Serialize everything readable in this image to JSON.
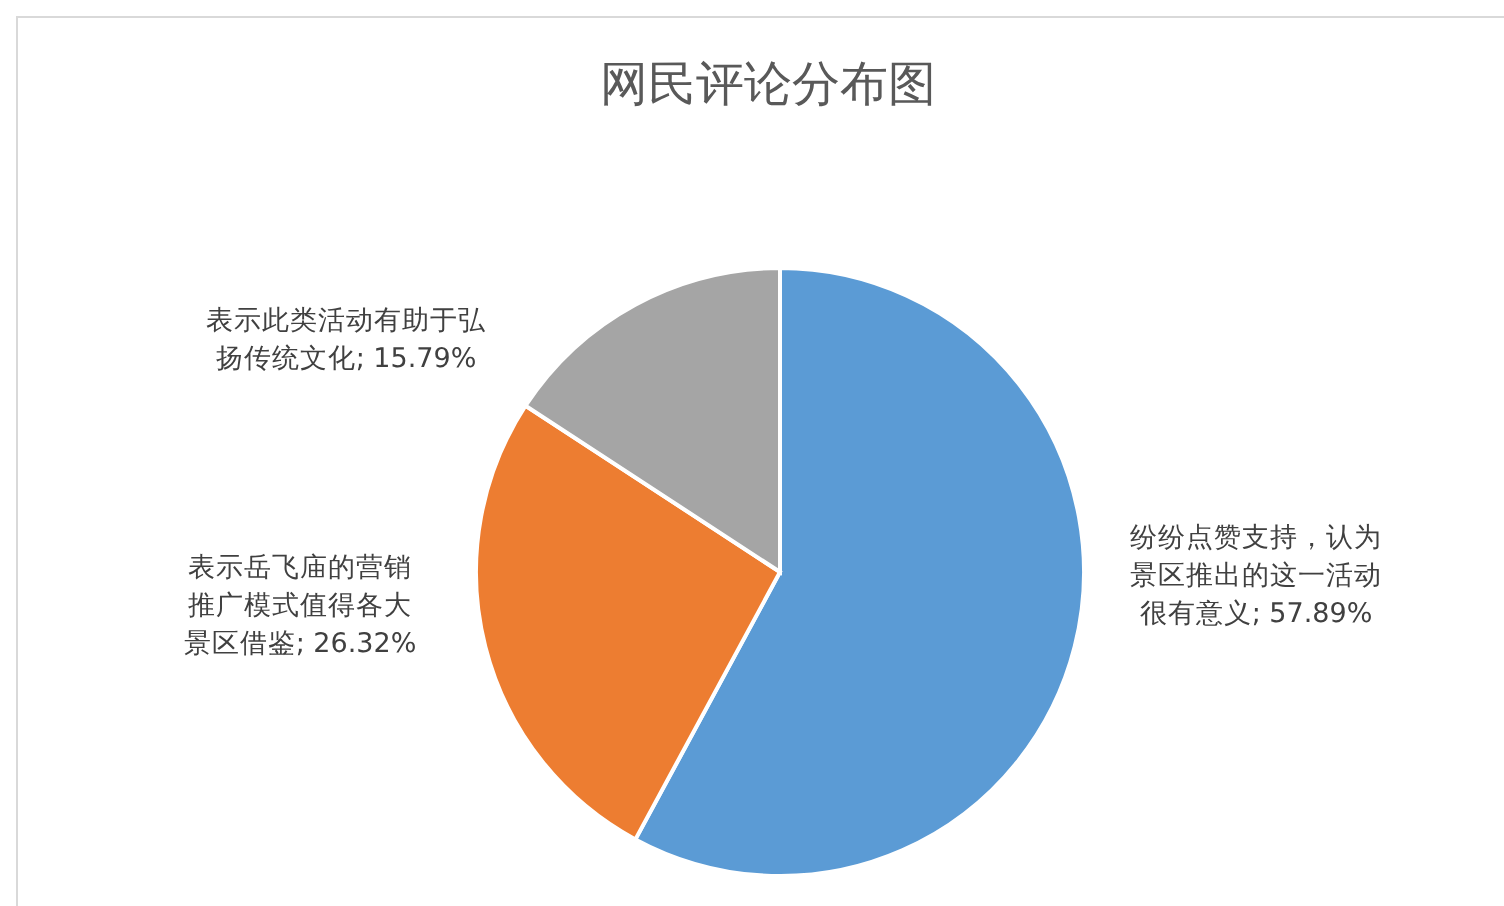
{
  "chart_data": {
    "type": "pie",
    "title": "网民评论分布图",
    "categories": [
      "纷纷点赞支持，认为景区推出的这一活动很有意义",
      "表示岳飞庙的营销推广模式值得各大景区借鉴",
      "表示此类活动有助于弘扬传统文化"
    ],
    "values": [
      57.89,
      26.32,
      15.79
    ],
    "colors": [
      "#5b9bd5",
      "#ed7d31",
      "#a5a5a5"
    ],
    "value_labels": [
      "; 57.89%",
      "; 26.32%",
      "; 15.79%"
    ]
  }
}
